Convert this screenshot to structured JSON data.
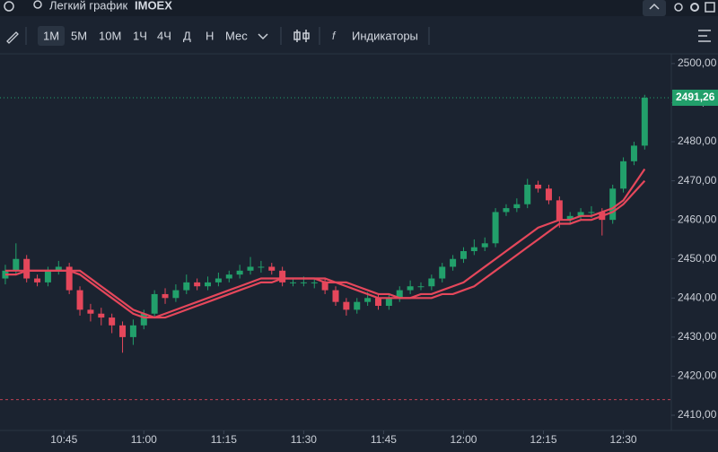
{
  "header": {
    "title": "Легкий график",
    "ticker": "IMOEX"
  },
  "toolbar": {
    "intervals": [
      "1M",
      "5M",
      "10M",
      "1Ч",
      "4Ч",
      "Д",
      "Н",
      "Мес"
    ],
    "indicators": "Индикаторы"
  },
  "chart_data": {
    "type": "candlestick",
    "x": [
      "10:34",
      "10:36",
      "10:38",
      "10:40",
      "10:42",
      "10:44",
      "10:46",
      "10:48",
      "10:50",
      "10:52",
      "10:54",
      "10:56",
      "10:58",
      "11:00",
      "11:02",
      "11:04",
      "11:06",
      "11:08",
      "11:10",
      "11:12",
      "11:14",
      "11:16",
      "11:18",
      "11:20",
      "11:22",
      "11:24",
      "11:26",
      "11:28",
      "11:30",
      "11:32",
      "11:34",
      "11:36",
      "11:38",
      "11:40",
      "11:42",
      "11:44",
      "11:46",
      "11:48",
      "11:50",
      "11:52",
      "11:54",
      "11:56",
      "11:58",
      "12:00",
      "12:02",
      "12:04",
      "12:06",
      "12:08",
      "12:10",
      "12:12",
      "12:14",
      "12:16",
      "12:18",
      "12:20",
      "12:22",
      "12:24",
      "12:26",
      "12:28",
      "12:30",
      "12:32",
      "12:34"
    ],
    "open": [
      2445,
      2447,
      2450,
      2445,
      2444,
      2447,
      2448,
      2442,
      2437,
      2436,
      2435,
      2433,
      2430,
      2433,
      2436,
      2441,
      2440,
      2442,
      2444,
      2443,
      2444,
      2445,
      2446,
      2447,
      2448,
      2448,
      2447,
      2444,
      2444,
      2444,
      2444,
      2442,
      2439,
      2437,
      2439,
      2440,
      2438,
      2440,
      2442,
      2443,
      2443,
      2445,
      2448,
      2450,
      2452,
      2453,
      2454,
      2462,
      2463,
      2464,
      2469,
      2468,
      2465,
      2460,
      2461,
      2462,
      2462,
      2460,
      2468,
      2475,
      2479
    ],
    "high": [
      2448.5,
      2454,
      2451,
      2446,
      2448,
      2449.5,
      2449,
      2443,
      2438.5,
      2437.5,
      2436,
      2434,
      2434.5,
      2437,
      2442,
      2442.5,
      2443.5,
      2446,
      2445,
      2445.5,
      2446.5,
      2447,
      2448.5,
      2450.5,
      2449.5,
      2449,
      2448,
      2445,
      2445.5,
      2445,
      2445,
      2443,
      2440,
      2440,
      2441.5,
      2441,
      2441,
      2443,
      2444.5,
      2444,
      2446,
      2449,
      2451,
      2453,
      2455,
      2455.5,
      2463,
      2464,
      2465.5,
      2470.5,
      2470,
      2469,
      2466,
      2462,
      2463,
      2463.5,
      2463,
      2469,
      2476,
      2480,
      2492
    ],
    "low": [
      2443.5,
      2446,
      2444,
      2443,
      2443,
      2446,
      2441,
      2435.5,
      2434,
      2433,
      2431,
      2426,
      2428,
      2432,
      2435,
      2438.5,
      2439,
      2441,
      2442,
      2442,
      2443,
      2444,
      2445,
      2446,
      2446.5,
      2446,
      2443,
      2443,
      2443,
      2442.5,
      2441,
      2438,
      2435.5,
      2436,
      2438,
      2437,
      2437,
      2439,
      2441,
      2442,
      2442,
      2444,
      2447,
      2449,
      2451,
      2452,
      2453,
      2461,
      2462,
      2463,
      2467,
      2464,
      2458,
      2459,
      2460,
      2460.5,
      2456,
      2459,
      2467,
      2474,
      2478
    ],
    "close": [
      2447,
      2450,
      2445,
      2444,
      2447,
      2448,
      2442,
      2437,
      2436,
      2435,
      2433,
      2430,
      2433,
      2436,
      2441,
      2440,
      2442,
      2444,
      2443,
      2444,
      2445,
      2446,
      2447,
      2448,
      2448,
      2447,
      2444,
      2444,
      2444,
      2444,
      2442,
      2439,
      2437,
      2439,
      2440,
      2438,
      2440,
      2442,
      2443,
      2443,
      2445,
      2448,
      2450,
      2452,
      2453,
      2454,
      2462,
      2463,
      2464,
      2469,
      2468,
      2465,
      2460,
      2461,
      2462,
      2462,
      2460,
      2468,
      2475,
      2479,
      2491.26
    ],
    "up_color": "#22a06b",
    "down_color": "#e5475b",
    "lines": [
      {
        "color": "#e5475b",
        "values": [
          2446,
          2446,
          2447,
          2447,
          2447,
          2447,
          2447,
          2446,
          2444,
          2442,
          2440,
          2438,
          2436,
          2435,
          2435,
          2436,
          2437,
          2438,
          2439,
          2440,
          2441,
          2442,
          2443,
          2444,
          2445,
          2445,
          2445,
          2445,
          2445,
          2445,
          2444,
          2444,
          2443,
          2442,
          2441,
          2440,
          2440,
          2440,
          2440,
          2441,
          2441,
          2442,
          2443,
          2444,
          2446,
          2448,
          2450,
          2452,
          2454,
          2456,
          2458,
          2459,
          2460,
          2460,
          2461,
          2461,
          2462,
          2463,
          2465,
          2469,
          2473
        ]
      },
      {
        "color": "#e5475b",
        "values": [
          2447,
          2447,
          2447,
          2447,
          2447,
          2447,
          2447,
          2447,
          2445,
          2443,
          2441,
          2439,
          2437,
          2436,
          2435,
          2435,
          2436,
          2437,
          2438,
          2439,
          2440,
          2441,
          2442,
          2443,
          2444,
          2444,
          2445,
          2445,
          2445,
          2445,
          2445,
          2444,
          2444,
          2443,
          2442,
          2441,
          2441,
          2440,
          2440,
          2440,
          2440,
          2441,
          2441,
          2442,
          2443,
          2445,
          2447,
          2449,
          2451,
          2453,
          2455,
          2457,
          2459,
          2459,
          2460,
          2460,
          2461,
          2462,
          2464,
          2467,
          2470
        ]
      }
    ],
    "last_price": {
      "value": 2491.26,
      "label": "2491,26"
    },
    "level_line": 2414,
    "xlim": [
      "10:33",
      "12:39"
    ],
    "xticks": [
      "10:45",
      "11:00",
      "11:15",
      "11:30",
      "11:45",
      "12:00",
      "12:15",
      "12:30"
    ],
    "ylim": [
      2406.1,
      2502.5
    ],
    "yticks": [
      {
        "value": 2410,
        "label": "2410,00"
      },
      {
        "value": 2420,
        "label": "2420,00"
      },
      {
        "value": 2430,
        "label": "2430,00"
      },
      {
        "value": 2440,
        "label": "2440,00"
      },
      {
        "value": 2450,
        "label": "2450,00"
      },
      {
        "value": 2460,
        "label": "2460,00"
      },
      {
        "value": 2470,
        "label": "2470,00"
      },
      {
        "value": 2480,
        "label": "2480,00"
      },
      {
        "value": 2490,
        "label": "2490,00"
      },
      {
        "value": 2500,
        "label": "2500,00"
      }
    ]
  }
}
